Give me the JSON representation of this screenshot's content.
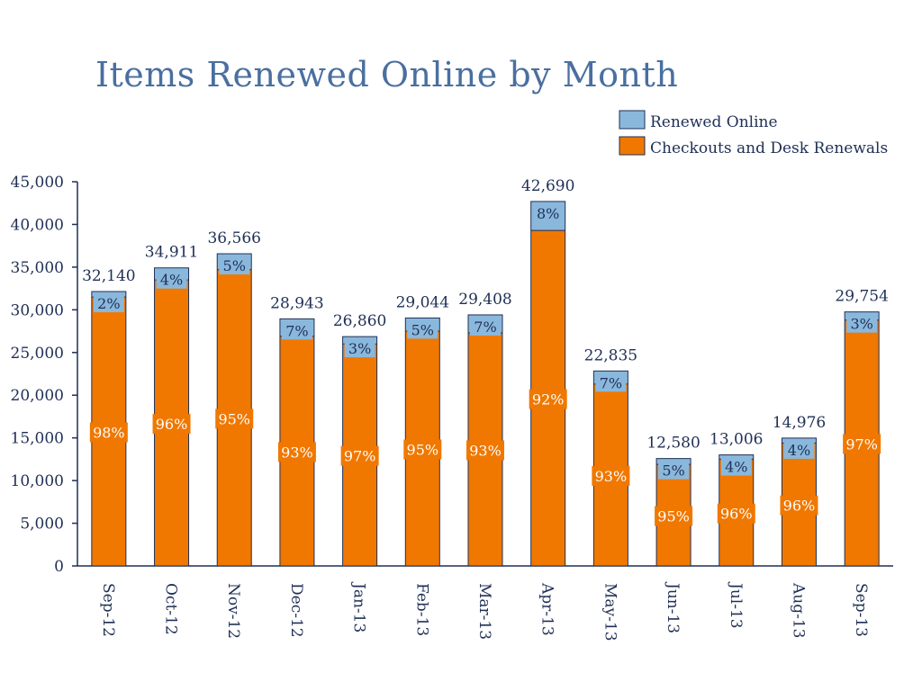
{
  "chart_data": {
    "type": "bar",
    "stacked": true,
    "title": "Items Renewed Online by Month",
    "categories": [
      "Sep-12",
      "Oct-12",
      "Nov-12",
      "Dec-12",
      "Jan-13",
      "Feb-13",
      "Mar-13",
      "Apr-13",
      "May-13",
      "Jun-13",
      "Jul-13",
      "Aug-13",
      "Sep-13"
    ],
    "totals": [
      32140,
      34911,
      36566,
      28943,
      26860,
      29044,
      29408,
      42690,
      22835,
      12580,
      13006,
      14976,
      29754
    ],
    "total_labels": [
      "32,140",
      "34,911",
      "36,566",
      "28,943",
      "26,860",
      "29,044",
      "29,408",
      "42,690",
      "22,835",
      "12,580",
      "13,006",
      "14,976",
      "29,754"
    ],
    "series": [
      {
        "name": "Checkouts and Desk Renewals",
        "color": "#f07800",
        "values": [
          31500,
          33500,
          34700,
          26900,
          26000,
          27500,
          27300,
          39300,
          21300,
          11900,
          12500,
          14400,
          28800
        ],
        "percent_labels": [
          "98%",
          "96%",
          "95%",
          "93%",
          "97%",
          "95%",
          "93%",
          "92%",
          "93%",
          "95%",
          "96%",
          "96%",
          "97%"
        ]
      },
      {
        "name": "Renewed Online",
        "color": "#8ab8dc",
        "values": [
          640,
          1411,
          1866,
          2043,
          860,
          1544,
          2108,
          3390,
          1535,
          680,
          506,
          576,
          954
        ],
        "percent_labels": [
          "2%",
          "4%",
          "5%",
          "7%",
          "3%",
          "5%",
          "7%",
          "8%",
          "7%",
          "5%",
          "4%",
          "4%",
          "3%"
        ]
      }
    ],
    "ylim": [
      0,
      45000
    ],
    "yticks": [
      0,
      5000,
      10000,
      15000,
      20000,
      25000,
      30000,
      35000,
      40000,
      45000
    ],
    "ytick_labels": [
      "0",
      "5,000",
      "10,000",
      "15,000",
      "20,000",
      "25,000",
      "30,000",
      "35,000",
      "40,000",
      "45,000"
    ],
    "legend_position": "top-right",
    "grid": false
  }
}
